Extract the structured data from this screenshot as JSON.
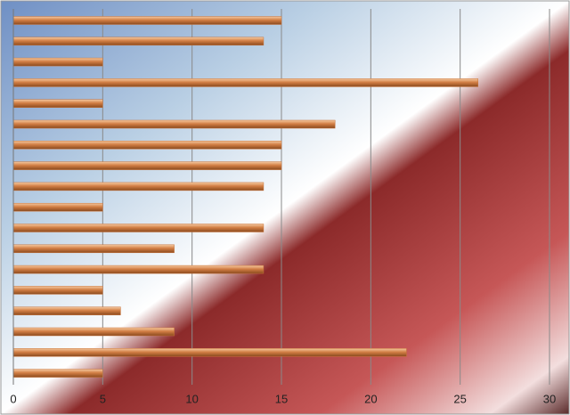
{
  "chart_data": {
    "type": "bar",
    "orientation": "horizontal",
    "categories": [
      null,
      null,
      null,
      null,
      null,
      null,
      null,
      null,
      null,
      null,
      null,
      null,
      null,
      null,
      null,
      null,
      null,
      null
    ],
    "values": [
      15,
      14,
      5,
      26,
      5,
      18,
      15,
      15,
      14,
      5,
      14,
      9,
      14,
      5,
      6,
      9,
      22,
      5
    ],
    "color": "#c8733a",
    "xlim": [
      0,
      30
    ],
    "xticks": [
      0,
      5,
      10,
      15,
      20,
      25,
      30
    ],
    "grid": true
  }
}
